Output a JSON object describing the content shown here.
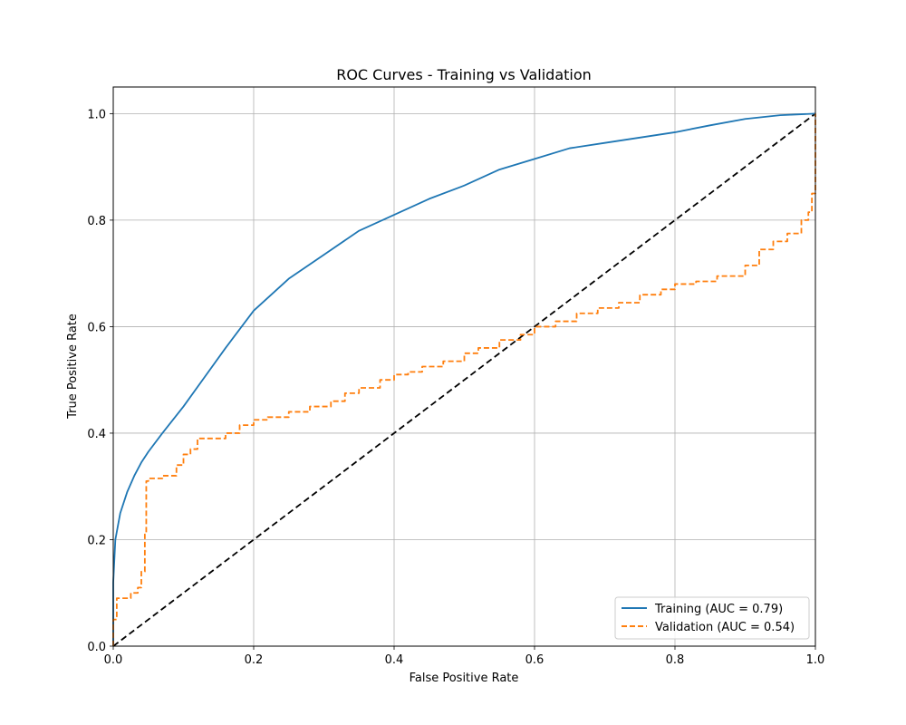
{
  "chart_data": {
    "type": "line",
    "title": "ROC Curves - Training vs Validation",
    "xlabel": "False Positive Rate",
    "ylabel": "True Positive Rate",
    "xlim": [
      0,
      1
    ],
    "ylim": [
      0,
      1.05
    ],
    "xticks": [
      "0.0",
      "0.2",
      "0.4",
      "0.6",
      "0.8",
      "1.0"
    ],
    "yticks": [
      "0.0",
      "0.2",
      "0.4",
      "0.6",
      "0.8",
      "1.0"
    ],
    "grid": true,
    "legend_position": "lower-right",
    "series": [
      {
        "name": "Training (AUC = 0.79)",
        "color": "#1f77b4",
        "style": "solid",
        "x": [
          0,
          0,
          0.003,
          0.01,
          0.02,
          0.03,
          0.04,
          0.05,
          0.07,
          0.1,
          0.13,
          0.16,
          0.2,
          0.25,
          0.3,
          0.35,
          0.4,
          0.45,
          0.5,
          0.55,
          0.6,
          0.65,
          0.7,
          0.75,
          0.8,
          0.85,
          0.9,
          0.95,
          1.0
        ],
        "y": [
          0,
          0.12,
          0.2,
          0.25,
          0.29,
          0.32,
          0.345,
          0.365,
          0.4,
          0.45,
          0.505,
          0.56,
          0.63,
          0.69,
          0.735,
          0.78,
          0.81,
          0.84,
          0.865,
          0.895,
          0.915,
          0.935,
          0.945,
          0.955,
          0.965,
          0.978,
          0.99,
          0.997,
          1.0
        ]
      },
      {
        "name": "Validation (AUC = 0.54)",
        "color": "#ff7f0e",
        "style": "dashed",
        "x": [
          0,
          0,
          0.005,
          0.005,
          0.02,
          0.025,
          0.035,
          0.04,
          0.045,
          0.047,
          0.05,
          0.07,
          0.09,
          0.1,
          0.11,
          0.12,
          0.16,
          0.18,
          0.2,
          0.22,
          0.25,
          0.28,
          0.31,
          0.33,
          0.35,
          0.38,
          0.4,
          0.42,
          0.44,
          0.47,
          0.5,
          0.52,
          0.55,
          0.58,
          0.6,
          0.63,
          0.66,
          0.69,
          0.72,
          0.75,
          0.78,
          0.8,
          0.83,
          0.86,
          0.9,
          0.92,
          0.94,
          0.96,
          0.98,
          0.99,
          0.995,
          1.0
        ],
        "y": [
          0,
          0.05,
          0.06,
          0.09,
          0.09,
          0.1,
          0.11,
          0.14,
          0.21,
          0.31,
          0.315,
          0.32,
          0.34,
          0.36,
          0.37,
          0.39,
          0.4,
          0.415,
          0.425,
          0.43,
          0.44,
          0.45,
          0.46,
          0.475,
          0.485,
          0.5,
          0.51,
          0.515,
          0.525,
          0.535,
          0.55,
          0.56,
          0.575,
          0.585,
          0.6,
          0.61,
          0.625,
          0.635,
          0.645,
          0.66,
          0.67,
          0.68,
          0.685,
          0.695,
          0.715,
          0.745,
          0.76,
          0.775,
          0.8,
          0.815,
          0.85,
          1.0
        ]
      },
      {
        "name": "",
        "color": "#000000",
        "style": "dashed",
        "x": [
          0,
          1
        ],
        "y": [
          0,
          1
        ]
      }
    ]
  }
}
